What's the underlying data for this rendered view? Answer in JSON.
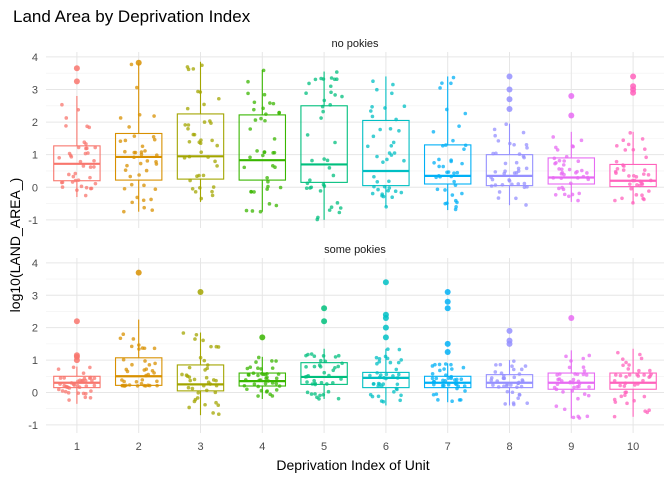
{
  "chart_data": {
    "type": "box",
    "title": "Land Area by Deprivation Index",
    "xlabel": "Deprivation Index of Unit",
    "ylabel": "log10(LAND_AREA_)",
    "categories": [
      "1",
      "2",
      "3",
      "4",
      "5",
      "6",
      "7",
      "8",
      "9",
      "10"
    ],
    "ylim": [
      -1.25,
      4.15
    ],
    "yticks": [
      -1,
      0,
      1,
      2,
      3,
      4
    ],
    "grid": true,
    "legend": "none",
    "colors": [
      "#F8766D",
      "#D89000",
      "#A3A500",
      "#39B600",
      "#00BF7D",
      "#00BFC4",
      "#00B0F6",
      "#9590FF",
      "#E76BF3",
      "#FF62BC"
    ],
    "panels": [
      {
        "strip": "no pokies",
        "boxes": [
          {
            "category": "1",
            "q1": 0.2,
            "median": 0.72,
            "q3": 1.27,
            "lower": -0.3,
            "upper": 2.8,
            "outliers": [
              3.25,
              3.65
            ]
          },
          {
            "category": "2",
            "q1": 0.22,
            "median": 0.93,
            "q3": 1.65,
            "lower": -0.75,
            "upper": 3.8,
            "outliers": [
              3.82
            ]
          },
          {
            "category": "3",
            "q1": 0.25,
            "median": 0.95,
            "q3": 2.25,
            "lower": -0.45,
            "upper": 3.85,
            "outliers": []
          },
          {
            "category": "4",
            "q1": 0.22,
            "median": 0.83,
            "q3": 2.22,
            "lower": -0.75,
            "upper": 3.6,
            "outliers": []
          },
          {
            "category": "5",
            "q1": 0.15,
            "median": 0.7,
            "q3": 2.5,
            "lower": -1.0,
            "upper": 3.55,
            "outliers": []
          },
          {
            "category": "6",
            "q1": 0.05,
            "median": 0.5,
            "q3": 2.05,
            "lower": -0.6,
            "upper": 3.4,
            "outliers": []
          },
          {
            "category": "7",
            "q1": 0.1,
            "median": 0.35,
            "q3": 1.3,
            "lower": -0.7,
            "upper": 3.4,
            "outliers": []
          },
          {
            "category": "8",
            "q1": 0.05,
            "median": 0.35,
            "q3": 1.0,
            "lower": -0.55,
            "upper": 1.95,
            "outliers": [
              2.4,
              2.7,
              3.0,
              3.4
            ]
          },
          {
            "category": "9",
            "q1": 0.1,
            "median": 0.3,
            "q3": 0.9,
            "lower": -0.45,
            "upper": 1.7,
            "outliers": [
              2.2,
              2.8
            ]
          },
          {
            "category": "10",
            "q1": 0.02,
            "median": 0.2,
            "q3": 0.7,
            "lower": -0.5,
            "upper": 1.7,
            "outliers": [
              2.9,
              3.0,
              3.1,
              3.4
            ]
          }
        ]
      },
      {
        "strip": "some pokies",
        "boxes": [
          {
            "category": "1",
            "q1": 0.15,
            "median": 0.3,
            "q3": 0.5,
            "lower": -0.35,
            "upper": 0.8,
            "outliers": [
              1.0,
              1.1,
              1.15,
              2.2
            ]
          },
          {
            "category": "2",
            "q1": 0.22,
            "median": 0.5,
            "q3": 1.07,
            "lower": 0.2,
            "upper": 2.25,
            "outliers": [
              3.7
            ]
          },
          {
            "category": "3",
            "q1": 0.05,
            "median": 0.25,
            "q3": 0.85,
            "lower": -0.7,
            "upper": 1.85,
            "outliers": [
              3.1
            ]
          },
          {
            "category": "4",
            "q1": 0.2,
            "median": 0.35,
            "q3": 0.6,
            "lower": -0.2,
            "upper": 1.1,
            "outliers": [
              1.7
            ]
          },
          {
            "category": "5",
            "q1": 0.25,
            "median": 0.48,
            "q3": 0.92,
            "lower": -0.2,
            "upper": 1.35,
            "outliers": [
              2.2,
              2.6
            ]
          },
          {
            "category": "6",
            "q1": 0.15,
            "median": 0.45,
            "q3": 0.62,
            "lower": -0.4,
            "upper": 1.35,
            "outliers": [
              1.7,
              2.0,
              2.3,
              2.4,
              3.4
            ]
          },
          {
            "category": "7",
            "q1": 0.15,
            "median": 0.3,
            "q3": 0.5,
            "lower": -0.3,
            "upper": 0.9,
            "outliers": [
              1.25,
              1.5,
              2.6,
              2.8,
              3.1
            ]
          },
          {
            "category": "8",
            "q1": 0.15,
            "median": 0.3,
            "q3": 0.55,
            "lower": -0.4,
            "upper": 1.0,
            "outliers": [
              1.5,
              1.6,
              1.9
            ]
          },
          {
            "category": "9",
            "q1": 0.1,
            "median": 0.3,
            "q3": 0.6,
            "lower": -0.8,
            "upper": 1.3,
            "outliers": [
              2.3
            ]
          },
          {
            "category": "10",
            "q1": 0.1,
            "median": 0.3,
            "q3": 0.6,
            "lower": -0.75,
            "upper": 1.35,
            "outliers": []
          }
        ]
      }
    ]
  }
}
